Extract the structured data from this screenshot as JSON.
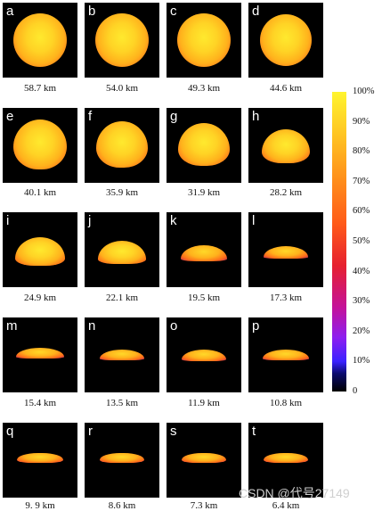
{
  "panels": [
    {
      "letter": "a",
      "caption": "58.7 km"
    },
    {
      "letter": "b",
      "caption": "54.0 km"
    },
    {
      "letter": "c",
      "caption": "49.3 km"
    },
    {
      "letter": "d",
      "caption": "44.6 km"
    },
    {
      "letter": "e",
      "caption": "40.1 km"
    },
    {
      "letter": "f",
      "caption": "35.9 km"
    },
    {
      "letter": "g",
      "caption": "31.9 km"
    },
    {
      "letter": "h",
      "caption": "28.2 km"
    },
    {
      "letter": "i",
      "caption": "24.9 km"
    },
    {
      "letter": "j",
      "caption": "22.1 km"
    },
    {
      "letter": "k",
      "caption": "19.5 km"
    },
    {
      "letter": "l",
      "caption": "17.3 km"
    },
    {
      "letter": "m",
      "caption": "15.4 km"
    },
    {
      "letter": "n",
      "caption": "13.5 km"
    },
    {
      "letter": "o",
      "caption": "11.9 km"
    },
    {
      "letter": "p",
      "caption": "10.8 km"
    },
    {
      "letter": "q",
      "caption": "9. 9 km"
    },
    {
      "letter": "r",
      "caption": "8.6 km"
    },
    {
      "letter": "s",
      "caption": "7.3 km"
    },
    {
      "letter": "t",
      "caption": "6.4 km"
    }
  ],
  "colorbar": {
    "ticks": [
      "100%",
      "90%",
      "80%",
      "70%",
      "60%",
      "50%",
      "40%",
      "30%",
      "20%",
      "10%",
      "0"
    ]
  },
  "watermark": "CSDN @代号27149"
}
